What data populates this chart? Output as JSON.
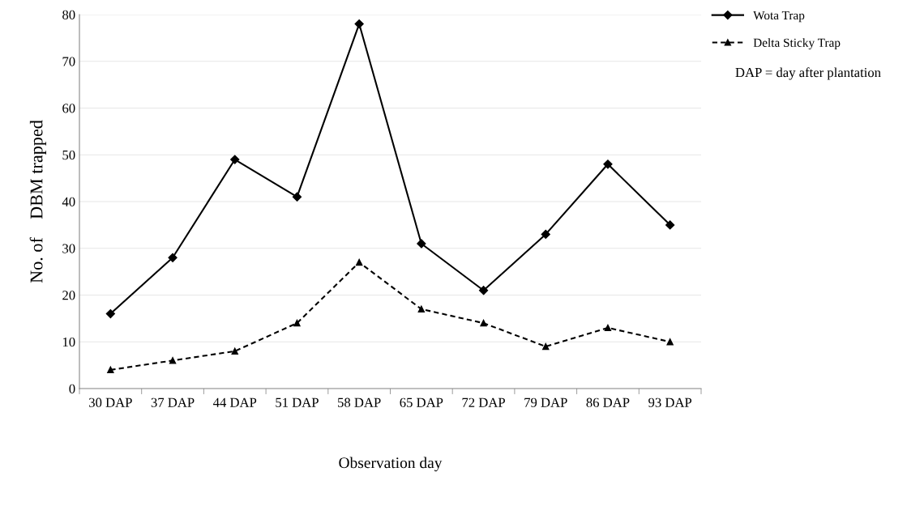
{
  "chart_data": {
    "type": "line",
    "xlabel": "Observation day",
    "ylabel": "No. of    DBM trapped",
    "categories": [
      "30 DAP",
      "37 DAP",
      "44 DAP",
      "51 DAP",
      "58 DAP",
      "65 DAP",
      "72 DAP",
      "79 DAP",
      "86 DAP",
      "93 DAP"
    ],
    "series": [
      {
        "name": "Wota Trap",
        "color": "#000000",
        "values": [
          16,
          28,
          49,
          41,
          78,
          31,
          21,
          33,
          48,
          35
        ],
        "marker": "diamond",
        "line_style": "solid"
      },
      {
        "name": "Delta Sticky Trap",
        "color": "#000000",
        "values": [
          4,
          6,
          8,
          14,
          27,
          17,
          14,
          9,
          13,
          10
        ],
        "marker": "triangle",
        "line_style": "dashed"
      }
    ],
    "ylim": [
      0,
      80
    ],
    "yticks": [
      0,
      10,
      20,
      30,
      40,
      50,
      60,
      70,
      80
    ],
    "grid": "y",
    "legend": "top right",
    "annotations": [
      "DAP = day after plantation"
    ]
  }
}
